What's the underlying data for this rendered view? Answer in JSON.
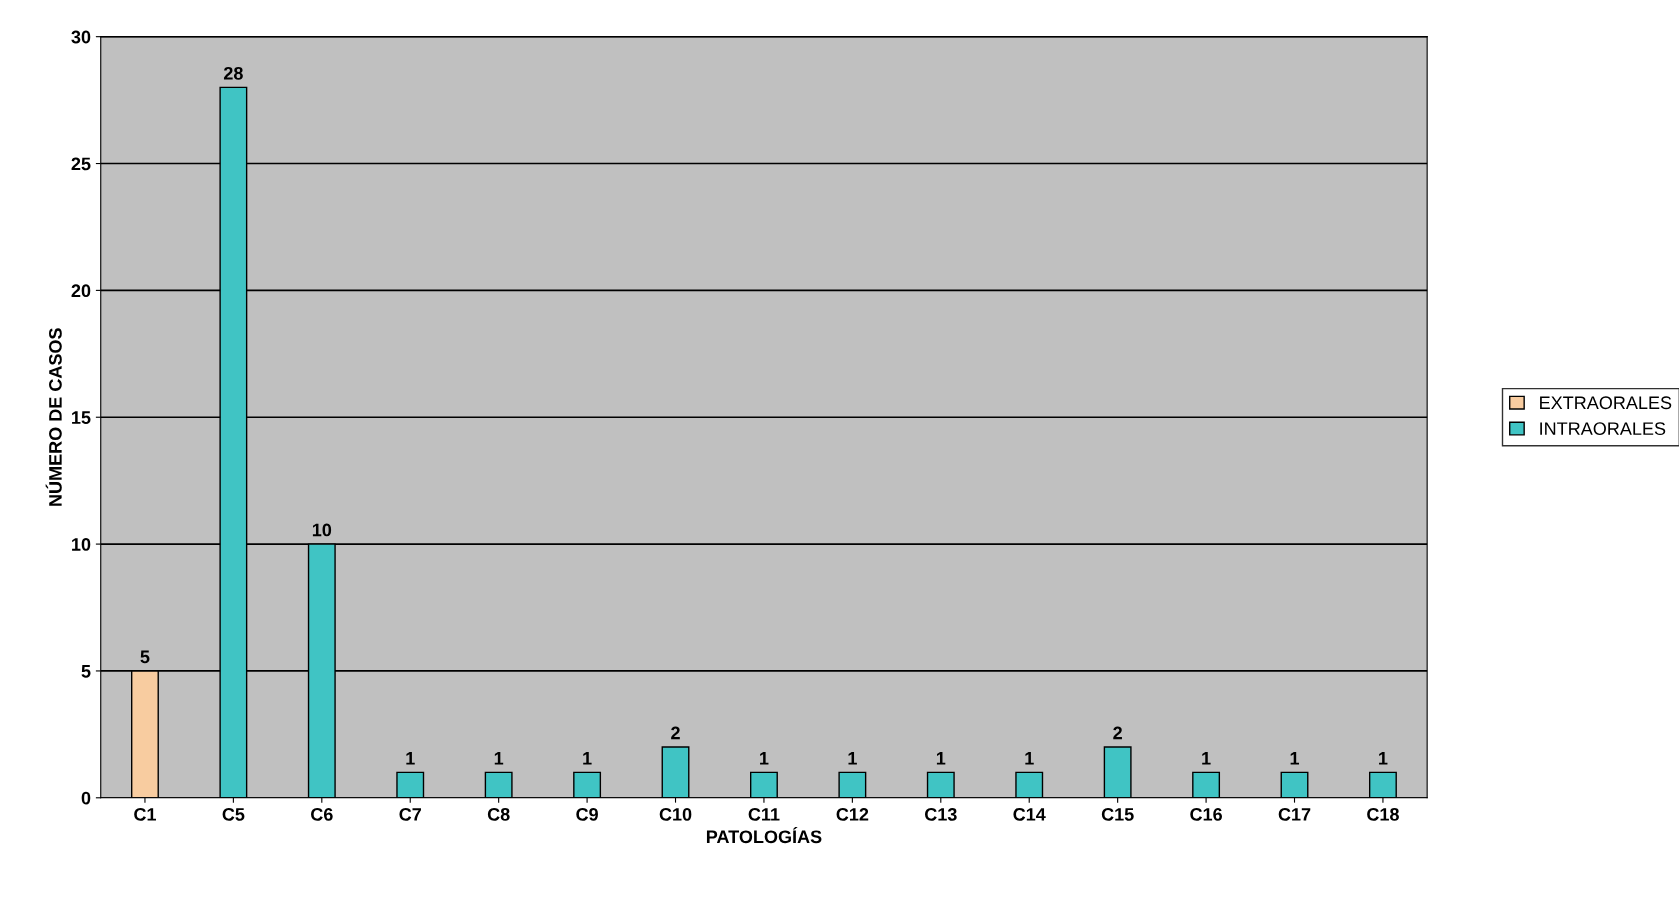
{
  "chart_data": {
    "type": "bar",
    "xlabel": "PATOLOGÍAS",
    "ylabel": "NÚMERO DE CASOS",
    "categories": [
      "C1",
      "C5",
      "C6",
      "C7",
      "C8",
      "C9",
      "C10",
      "C11",
      "C12",
      "C13",
      "C14",
      "C15",
      "C16",
      "C17",
      "C18"
    ],
    "series": [
      {
        "name": "EXTRAORALES",
        "color": "#f8cca0",
        "values": [
          5,
          null,
          null,
          null,
          null,
          null,
          null,
          null,
          null,
          null,
          null,
          null,
          null,
          null,
          null
        ]
      },
      {
        "name": "INTRAORALES",
        "color": "#40c4c4",
        "values": [
          null,
          28,
          10,
          1,
          1,
          1,
          2,
          1,
          1,
          1,
          1,
          2,
          1,
          1,
          1
        ]
      }
    ],
    "ylim": [
      0,
      30
    ],
    "yticks": [
      0,
      5,
      10,
      15,
      20,
      25,
      30
    ],
    "grid": "y",
    "legend": "right",
    "data_labels": true
  }
}
